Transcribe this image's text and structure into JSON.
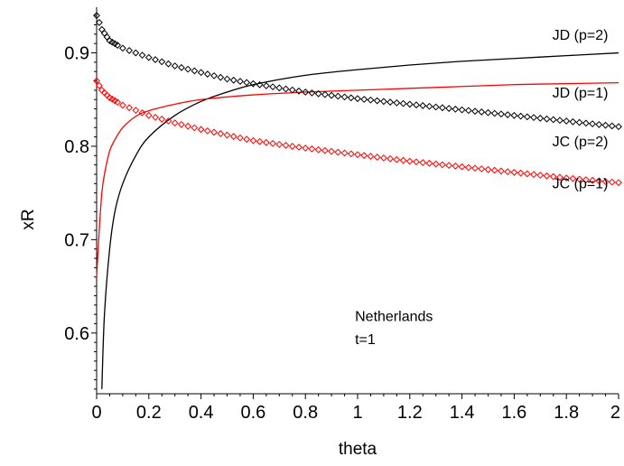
{
  "chart_data": {
    "type": "line",
    "title": "",
    "xlabel": "theta",
    "ylabel": "xR",
    "xlim": [
      0,
      2
    ],
    "ylim": [
      0.535,
      0.945
    ],
    "x_ticks": [
      0,
      0.2,
      0.4,
      0.6,
      0.8,
      1,
      1.2,
      1.4,
      1.6,
      1.8,
      2
    ],
    "x_tick_labels": [
      "0",
      "0.2",
      "0.4",
      "0.6",
      "0.8",
      "1",
      "1.2",
      "1.4",
      "1.6",
      "1.8",
      "2"
    ],
    "y_ticks": [
      0.6,
      0.7,
      0.8,
      0.9
    ],
    "y_tick_labels": [
      "0.6",
      "0.7",
      "0.8",
      "0.9"
    ],
    "grid": false,
    "legend": "none",
    "series": [
      {
        "name": "JD (p=2)",
        "style": "line",
        "color": "#000000",
        "x": [
          0.02,
          0.03,
          0.05,
          0.07,
          0.1,
          0.15,
          0.2,
          0.3,
          0.4,
          0.5,
          0.6,
          0.8,
          1.0,
          1.2,
          1.4,
          1.6,
          1.8,
          2.0
        ],
        "y": [
          0.54,
          0.62,
          0.69,
          0.73,
          0.76,
          0.79,
          0.81,
          0.833,
          0.848,
          0.858,
          0.866,
          0.876,
          0.882,
          0.887,
          0.891,
          0.894,
          0.897,
          0.9
        ]
      },
      {
        "name": "JD (p=1)",
        "style": "line",
        "color": "#ff0000",
        "x": [
          0.0,
          0.01,
          0.02,
          0.03,
          0.05,
          0.07,
          0.1,
          0.15,
          0.2,
          0.3,
          0.4,
          0.6,
          0.8,
          1.0,
          1.2,
          1.4,
          1.6,
          1.8,
          2.0
        ],
        "y": [
          0.66,
          0.71,
          0.75,
          0.77,
          0.795,
          0.807,
          0.82,
          0.832,
          0.838,
          0.845,
          0.85,
          0.855,
          0.858,
          0.86,
          0.862,
          0.864,
          0.866,
          0.867,
          0.868
        ]
      },
      {
        "name": "JC (p=2)",
        "style": "markers",
        "marker": "diamond",
        "color": "#000000",
        "x": [
          0.0,
          0.02,
          0.05,
          0.1,
          0.2,
          0.3,
          0.4,
          0.5,
          0.6,
          0.8,
          1.0,
          1.2,
          1.4,
          1.6,
          1.8,
          2.0
        ],
        "y": [
          0.94,
          0.925,
          0.913,
          0.905,
          0.895,
          0.886,
          0.879,
          0.872,
          0.867,
          0.858,
          0.851,
          0.845,
          0.839,
          0.833,
          0.827,
          0.821
        ]
      },
      {
        "name": "JC (p=1)",
        "style": "markers",
        "marker": "diamond",
        "color": "#ff0000",
        "x": [
          0.0,
          0.02,
          0.05,
          0.1,
          0.2,
          0.3,
          0.4,
          0.5,
          0.6,
          0.8,
          1.0,
          1.2,
          1.4,
          1.6,
          1.8,
          2.0
        ],
        "y": [
          0.87,
          0.86,
          0.852,
          0.844,
          0.833,
          0.825,
          0.818,
          0.812,
          0.806,
          0.798,
          0.791,
          0.784,
          0.778,
          0.772,
          0.766,
          0.761
        ]
      }
    ],
    "curve_labels": [
      {
        "text": "JD (p=2)",
        "x": 1.96,
        "y": 0.914
      },
      {
        "text": "JD (p=1)",
        "x": 1.96,
        "y": 0.852
      },
      {
        "text": "JC (p=2)",
        "x": 1.96,
        "y": 0.8
      },
      {
        "text": "JC (p=1)",
        "x": 1.96,
        "y": 0.755
      }
    ],
    "annotations": [
      {
        "text": "Netherlands",
        "x": 0.99,
        "y": 0.613
      },
      {
        "text": "t=1",
        "x": 0.99,
        "y": 0.588
      }
    ]
  }
}
